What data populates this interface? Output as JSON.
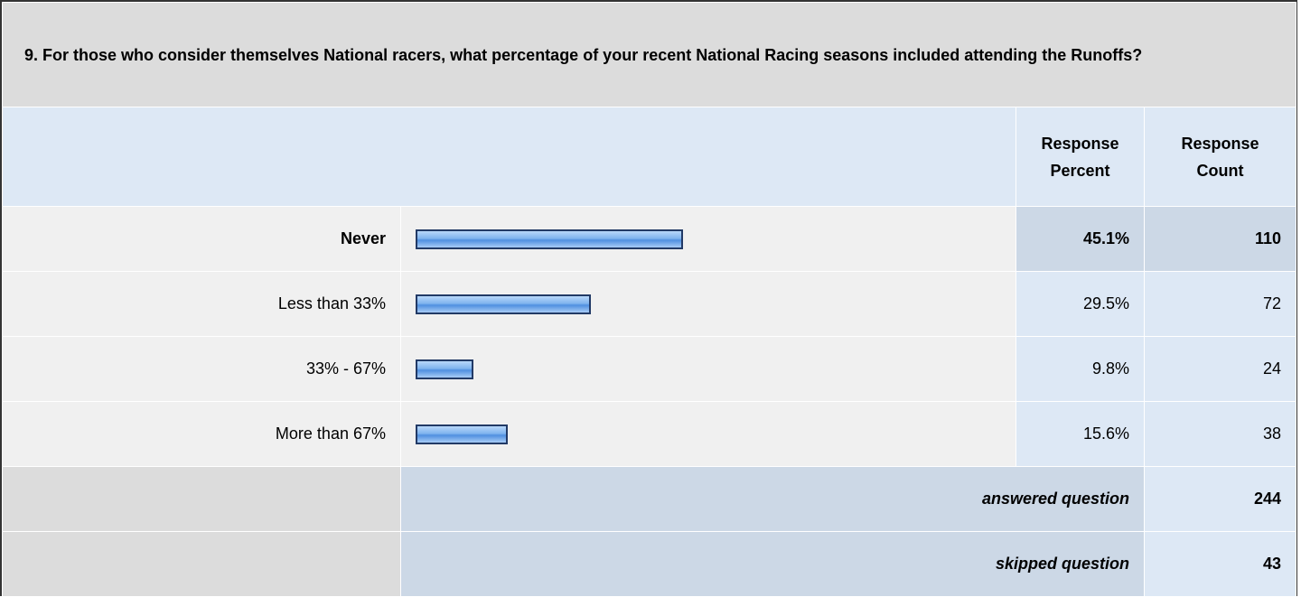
{
  "question": "9. For those who consider themselves National racers, what percentage of your recent National Racing seasons included attending the Runoffs?",
  "header": {
    "percent": "Response Percent",
    "count": "Response Count"
  },
  "rows": [
    {
      "label": "Never",
      "percent": 45.1,
      "percent_label": "45.1%",
      "count": 110
    },
    {
      "label": "Less than 33%",
      "percent": 29.5,
      "percent_label": "29.5%",
      "count": 72
    },
    {
      "label": "33% - 67%",
      "percent": 9.8,
      "percent_label": "9.8%",
      "count": 24
    },
    {
      "label": "More than 67%",
      "percent": 15.6,
      "percent_label": "15.6%",
      "count": 38
    }
  ],
  "answered": {
    "label": "answered question",
    "count": 244
  },
  "skipped": {
    "label": "skipped question",
    "count": 43
  }
}
